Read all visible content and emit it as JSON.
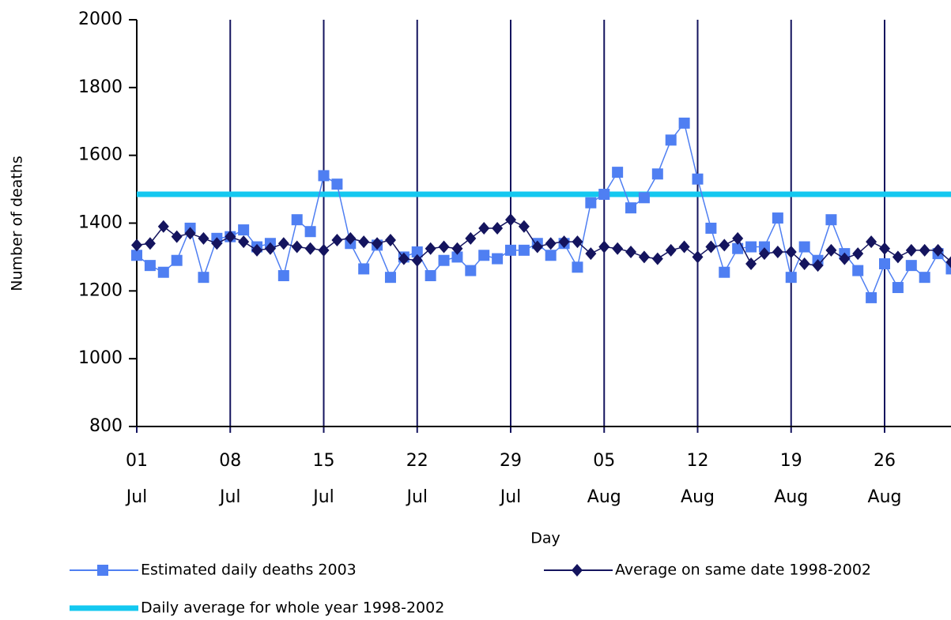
{
  "chart_data": {
    "type": "line",
    "x_label": "Day",
    "y_label": "Number of deaths",
    "categories": [
      "01 Jul",
      null,
      null,
      null,
      null,
      null,
      null,
      "08 Jul",
      null,
      null,
      null,
      null,
      null,
      null,
      "15 Jul",
      null,
      null,
      null,
      null,
      null,
      null,
      "22 Jul",
      null,
      null,
      null,
      null,
      null,
      null,
      "29 Jul",
      null,
      null,
      null,
      null,
      null,
      null,
      "05 Aug",
      null,
      null,
      null,
      null,
      null,
      null,
      "12 Aug",
      null,
      null,
      null,
      null,
      null,
      null,
      "19 Aug",
      null,
      null,
      null,
      null,
      null,
      null,
      "26 Aug",
      null,
      null,
      null,
      null,
      null
    ],
    "series": [
      {
        "name": "Estimated daily deaths 2003",
        "color": "#4f7ff2",
        "marker": "square",
        "values": [
          1305,
          1275,
          1255,
          1290,
          1385,
          1240,
          1355,
          1360,
          1380,
          1330,
          1340,
          1245,
          1410,
          1375,
          1540,
          1515,
          1340,
          1265,
          1335,
          1240,
          1300,
          1315,
          1245,
          1290,
          1300,
          1260,
          1305,
          1295,
          1320,
          1320,
          1340,
          1305,
          1340,
          1270,
          1460,
          1485,
          1550,
          1445,
          1475,
          1545,
          1645,
          1695,
          1530,
          1385,
          1255,
          1325,
          1330,
          1330,
          1415,
          1240,
          1330,
          1290,
          1410,
          1310,
          1260,
          1180,
          1280,
          1210,
          1275,
          1240,
          1310,
          1265
        ]
      },
      {
        "name": "Average on same date 1998-2002",
        "color": "#14145e",
        "marker": "diamond",
        "values": [
          1335,
          1340,
          1390,
          1360,
          1370,
          1355,
          1340,
          1360,
          1345,
          1320,
          1325,
          1340,
          1330,
          1325,
          1320,
          1350,
          1355,
          1345,
          1340,
          1350,
          1295,
          1290,
          1325,
          1330,
          1325,
          1355,
          1385,
          1385,
          1410,
          1390,
          1330,
          1340,
          1345,
          1345,
          1310,
          1330,
          1325,
          1315,
          1300,
          1295,
          1320,
          1330,
          1300,
          1330,
          1335,
          1355,
          1280,
          1310,
          1315,
          1315,
          1280,
          1275,
          1320,
          1295,
          1310,
          1345,
          1325,
          1300,
          1320,
          1320,
          1320,
          1285
        ]
      }
    ],
    "reference_line": {
      "name": "Daily average for whole year 1998-2002",
      "value": 1485,
      "color": "#14c8f0"
    },
    "ylim": [
      800,
      2000
    ],
    "yticks": [
      800,
      1000,
      1200,
      1400,
      1600,
      1800,
      2000
    ],
    "grid": "x"
  }
}
